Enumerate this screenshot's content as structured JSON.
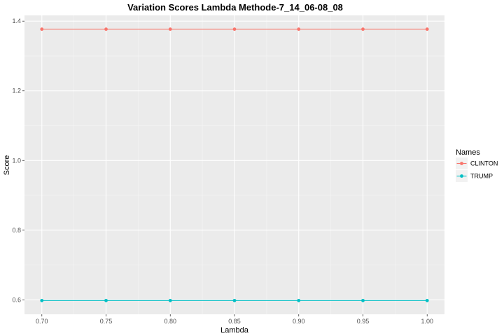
{
  "chart_data": {
    "type": "line",
    "title": "Variation Scores Lambda Methode-7_14_06-08_08",
    "xlabel": "Lambda",
    "ylabel": "Score",
    "x": [
      0.7,
      0.75,
      0.8,
      0.85,
      0.9,
      0.95,
      1.0
    ],
    "x_tick_labels": [
      "0.70",
      "0.75",
      "0.80",
      "0.85",
      "0.90",
      "0.95",
      "1.00"
    ],
    "y_ticks": [
      0.6,
      0.8,
      1.0,
      1.2,
      1.4
    ],
    "y_tick_labels": [
      "0.6",
      "0.8",
      "1.0",
      "1.2",
      "1.4"
    ],
    "xlim": [
      0.6865,
      1.0135
    ],
    "ylim": [
      0.5585,
      1.4165
    ],
    "grid": true,
    "legend_placement": "right",
    "legend_title": "Names",
    "series": [
      {
        "name": "CLINTON",
        "color": "#F8766D",
        "values": [
          1.377,
          1.377,
          1.377,
          1.377,
          1.377,
          1.377,
          1.377
        ]
      },
      {
        "name": "TRUMP",
        "color": "#00BFC4",
        "values": [
          0.598,
          0.598,
          0.598,
          0.598,
          0.598,
          0.598,
          0.598
        ]
      }
    ],
    "colors": {
      "panel": "#EBEBEB",
      "grid_major": "#FFFFFF",
      "legend_key": "#F2F2F2"
    }
  }
}
